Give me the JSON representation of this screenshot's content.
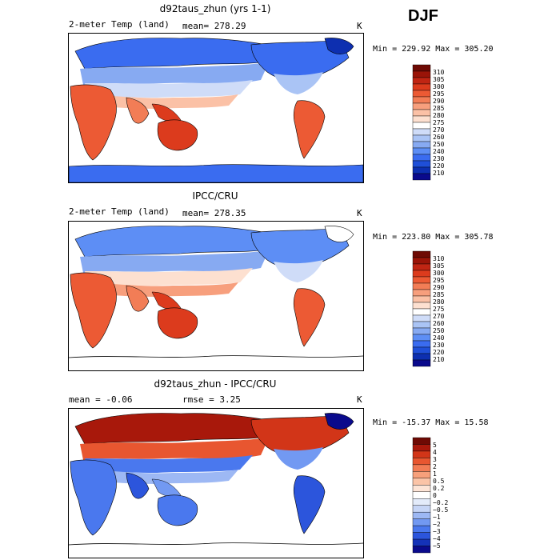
{
  "season": "DJF",
  "colors": {
    "abs_scale": [
      "#0a0a8c",
      "#0d2fb0",
      "#1f4fd8",
      "#3a6cf0",
      "#5d8ef5",
      "#87aaf2",
      "#aac4f5",
      "#cfdcf8",
      "#ffffff",
      "#fde0d0",
      "#fbc1a6",
      "#f79f7d",
      "#f27d56",
      "#ec5a34",
      "#dc3b1d",
      "#c02513",
      "#9a1408",
      "#6e0a04"
    ],
    "diff_scale": [
      "#0a0a8c",
      "#1432b8",
      "#2c55dc",
      "#4a78ee",
      "#7299f2",
      "#9db8f4",
      "#c6d5f6",
      "#e3ebfa",
      "#ffffff",
      "#fde4d6",
      "#fbc4a7",
      "#f7a07b",
      "#f27c55",
      "#e85630",
      "#d23518",
      "#a8180b",
      "#6e0a04"
    ]
  },
  "panels": [
    {
      "title": "d92taus_zhun (yrs 1-1)",
      "left": "2-meter Temp (land)",
      "mid": "mean= 278.29",
      "right": "K",
      "stats": "Min = 229.92 Max = 305.20"
    },
    {
      "title": "IPCC/CRU",
      "left": "2-meter Temp (land)",
      "mid": "mean= 278.35",
      "right": "K",
      "stats": "Min = 223.80 Max = 305.78"
    },
    {
      "title": "d92taus_zhun - IPCC/CRU",
      "left": "mean =   -0.06",
      "mid": "rmse =    3.25",
      "right": "K",
      "stats": "Min = -15.37 Max =  15.58"
    }
  ],
  "chart_data": [
    {
      "type": "heatmap",
      "title": "d92taus_zhun (yrs 1-1)",
      "variable": "2-meter Temp (land)",
      "units": "K",
      "mean": 278.29,
      "min": 229.92,
      "max": 305.2,
      "colorbar_levels": [
        "310",
        "305",
        "300",
        "295",
        "290",
        "285",
        "280",
        "275",
        "270",
        "260",
        "250",
        "240",
        "230",
        "220",
        "210"
      ]
    },
    {
      "type": "heatmap",
      "title": "IPCC/CRU",
      "variable": "2-meter Temp (land)",
      "units": "K",
      "mean": 278.35,
      "min": 223.8,
      "max": 305.78,
      "colorbar_levels": [
        "310",
        "305",
        "300",
        "295",
        "290",
        "285",
        "280",
        "275",
        "270",
        "260",
        "250",
        "240",
        "230",
        "220",
        "210"
      ]
    },
    {
      "type": "heatmap",
      "title": "d92taus_zhun - IPCC/CRU",
      "units": "K",
      "mean": -0.06,
      "rmse": 3.25,
      "min": -15.37,
      "max": 15.58,
      "colorbar_levels": [
        "5",
        "4",
        "3",
        "2",
        "1",
        "0.5",
        "0.2",
        "0",
        "−0.2",
        "−0.5",
        "−1",
        "−2",
        "−3",
        "−4",
        "−5"
      ]
    }
  ]
}
